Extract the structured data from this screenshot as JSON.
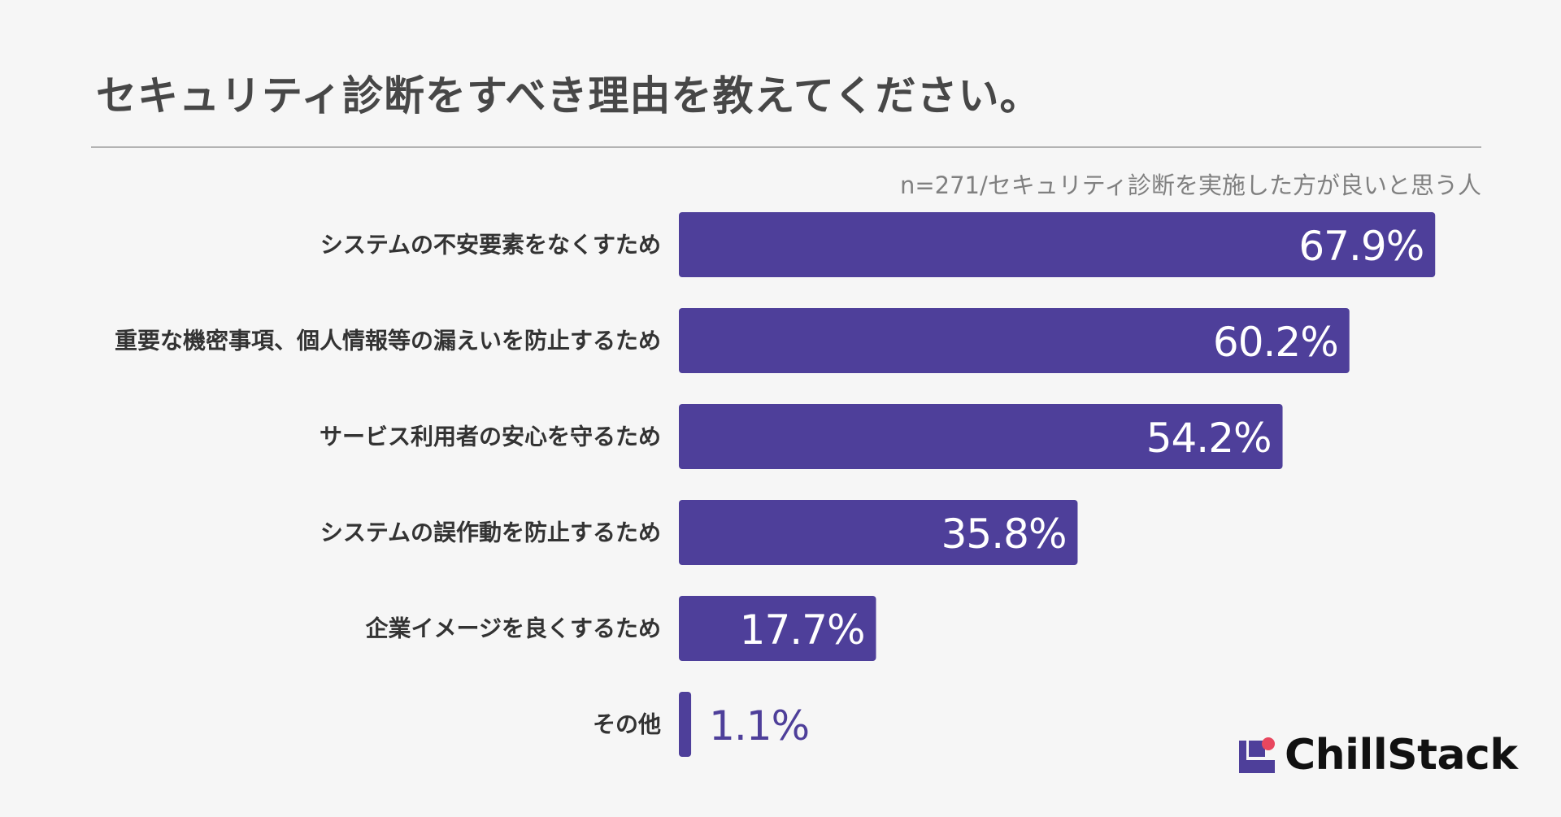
{
  "header": {
    "title": "セキュリティ診断をすべき理由を教えてください。",
    "note": "n=271/セキュリティ診断を実施した方が良いと思う人"
  },
  "brand": {
    "name": "ChillStack",
    "color": "#4e3f9a",
    "accent": "#e8475f"
  },
  "chart_data": {
    "type": "bar",
    "orientation": "horizontal",
    "categories": [
      "システムの不安要素をなくすため",
      "重要な機密事項、個人情報等の漏えいを防止するため",
      "サービス利用者の安心を守るため",
      "システムの誤作動を防止するため",
      "企業イメージを良くするため",
      "その他"
    ],
    "values": [
      67.9,
      60.2,
      54.2,
      35.8,
      17.7,
      1.1
    ],
    "value_labels": [
      "67.9%",
      "60.2%",
      "54.2%",
      "35.8%",
      "17.7%",
      "1.1%"
    ],
    "unit": "%",
    "bar_color": "#4e3f9a",
    "label_color_inside": "#ffffff",
    "label_color_outside": "#4e3f9a",
    "category_color": "#333333",
    "xlim": [
      0,
      100
    ],
    "grid": false,
    "legend": "none"
  }
}
